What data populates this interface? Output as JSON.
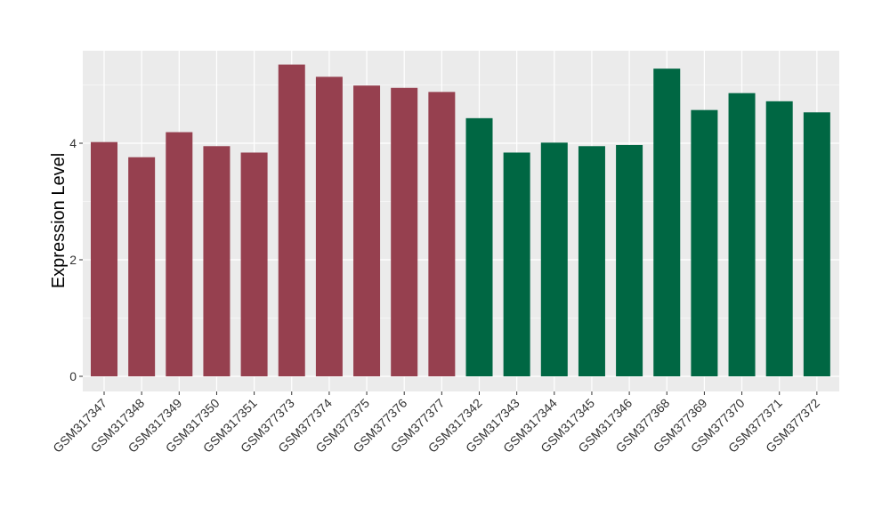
{
  "chart_data": {
    "type": "bar",
    "title": "",
    "xlabel": "",
    "ylabel": "Expression Level",
    "ylim": [
      -0.2,
      5.55
    ],
    "yticks": [
      0,
      2,
      4
    ],
    "grid": true,
    "legend": "none",
    "categories": [
      "GSM317347",
      "GSM317348",
      "GSM317349",
      "GSM317350",
      "GSM317351",
      "GSM377373",
      "GSM377374",
      "GSM377375",
      "GSM377376",
      "GSM377377",
      "GSM317342",
      "GSM317343",
      "GSM317344",
      "GSM317345",
      "GSM317346",
      "GSM377368",
      "GSM377369",
      "GSM377370",
      "GSM377371",
      "GSM377372"
    ],
    "values": [
      4.02,
      3.76,
      4.19,
      3.95,
      3.84,
      5.35,
      5.14,
      4.99,
      4.95,
      4.88,
      4.43,
      3.84,
      4.01,
      3.95,
      3.97,
      5.28,
      4.57,
      4.86,
      4.72,
      4.53
    ],
    "bar_colors": [
      "#96404f",
      "#96404f",
      "#96404f",
      "#96404f",
      "#96404f",
      "#96404f",
      "#96404f",
      "#96404f",
      "#96404f",
      "#96404f",
      "#006743",
      "#006743",
      "#006743",
      "#006743",
      "#006743",
      "#006743",
      "#006743",
      "#006743",
      "#006743",
      "#006743"
    ],
    "panel_background": "#ebebeb",
    "grid_color": "#ffffff"
  }
}
